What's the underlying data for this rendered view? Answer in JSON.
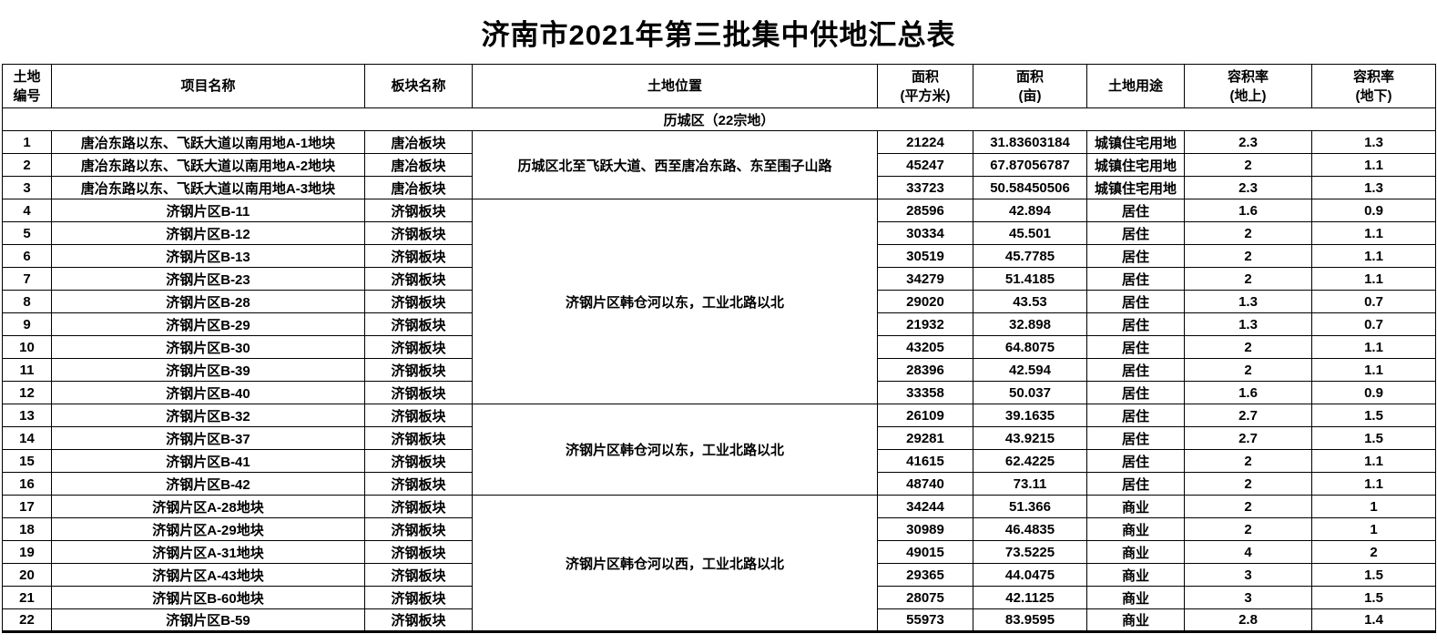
{
  "title": "济南市2021年第三批集中供地汇总表",
  "table": {
    "columns": [
      {
        "key": "land-id",
        "lines": [
          "土地",
          "编号"
        ]
      },
      {
        "key": "project-name",
        "lines": [
          "项目名称"
        ]
      },
      {
        "key": "block-name",
        "lines": [
          "板块名称"
        ]
      },
      {
        "key": "land-location",
        "lines": [
          "土地位置"
        ]
      },
      {
        "key": "area-sqm",
        "lines": [
          "面积",
          "(平方米)"
        ]
      },
      {
        "key": "area-mu",
        "lines": [
          "面积",
          "(亩)"
        ]
      },
      {
        "key": "land-use",
        "lines": [
          "土地用途"
        ]
      },
      {
        "key": "far-above",
        "lines": [
          "容积率",
          "(地上)"
        ]
      },
      {
        "key": "far-below",
        "lines": [
          "容积率",
          "(地下)"
        ]
      }
    ],
    "section": "历城区（22宗地）",
    "location_groups": [
      {
        "from": 1,
        "to": 3,
        "text": "历城区北至飞跃大道、西至唐冶东路、东至围子山路"
      },
      {
        "from": 4,
        "to": 12,
        "text": "济钢片区韩仓河以东，工业北路以北"
      },
      {
        "from": 13,
        "to": 16,
        "text": "济钢片区韩仓河以东，工业北路以北"
      },
      {
        "from": 17,
        "to": 22,
        "text": "济钢片区韩仓河以西，工业北路以北"
      }
    ],
    "rows": [
      {
        "no": "1",
        "name": "唐冶东路以东、飞跃大道以南用地A-1地块",
        "block": "唐冶板块",
        "area_sqm": "21224",
        "area_mu": "31.83603184",
        "use": "城镇住宅用地",
        "far_above": "2.3",
        "far_below": "1.3"
      },
      {
        "no": "2",
        "name": "唐冶东路以东、飞跃大道以南用地A-2地块",
        "block": "唐冶板块",
        "area_sqm": "45247",
        "area_mu": "67.87056787",
        "use": "城镇住宅用地",
        "far_above": "2",
        "far_below": "1.1"
      },
      {
        "no": "3",
        "name": "唐冶东路以东、飞跃大道以南用地A-3地块",
        "block": "唐冶板块",
        "area_sqm": "33723",
        "area_mu": "50.58450506",
        "use": "城镇住宅用地",
        "far_above": "2.3",
        "far_below": "1.3"
      },
      {
        "no": "4",
        "name": "济钢片区B-11",
        "block": "济钢板块",
        "area_sqm": "28596",
        "area_mu": "42.894",
        "use": "居住",
        "far_above": "1.6",
        "far_below": "0.9"
      },
      {
        "no": "5",
        "name": "济钢片区B-12",
        "block": "济钢板块",
        "area_sqm": "30334",
        "area_mu": "45.501",
        "use": "居住",
        "far_above": "2",
        "far_below": "1.1"
      },
      {
        "no": "6",
        "name": "济钢片区B-13",
        "block": "济钢板块",
        "area_sqm": "30519",
        "area_mu": "45.7785",
        "use": "居住",
        "far_above": "2",
        "far_below": "1.1"
      },
      {
        "no": "7",
        "name": "济钢片区B-23",
        "block": "济钢板块",
        "area_sqm": "34279",
        "area_mu": "51.4185",
        "use": "居住",
        "far_above": "2",
        "far_below": "1.1"
      },
      {
        "no": "8",
        "name": "济钢片区B-28",
        "block": "济钢板块",
        "area_sqm": "29020",
        "area_mu": "43.53",
        "use": "居住",
        "far_above": "1.3",
        "far_below": "0.7"
      },
      {
        "no": "9",
        "name": "济钢片区B-29",
        "block": "济钢板块",
        "area_sqm": "21932",
        "area_mu": "32.898",
        "use": "居住",
        "far_above": "1.3",
        "far_below": "0.7"
      },
      {
        "no": "10",
        "name": "济钢片区B-30",
        "block": "济钢板块",
        "area_sqm": "43205",
        "area_mu": "64.8075",
        "use": "居住",
        "far_above": "2",
        "far_below": "1.1"
      },
      {
        "no": "11",
        "name": "济钢片区B-39",
        "block": "济钢板块",
        "area_sqm": "28396",
        "area_mu": "42.594",
        "use": "居住",
        "far_above": "2",
        "far_below": "1.1"
      },
      {
        "no": "12",
        "name": "济钢片区B-40",
        "block": "济钢板块",
        "area_sqm": "33358",
        "area_mu": "50.037",
        "use": "居住",
        "far_above": "1.6",
        "far_below": "0.9"
      },
      {
        "no": "13",
        "name": "济钢片区B-32",
        "block": "济钢板块",
        "area_sqm": "26109",
        "area_mu": "39.1635",
        "use": "居住",
        "far_above": "2.7",
        "far_below": "1.5"
      },
      {
        "no": "14",
        "name": "济钢片区B-37",
        "block": "济钢板块",
        "area_sqm": "29281",
        "area_mu": "43.9215",
        "use": "居住",
        "far_above": "2.7",
        "far_below": "1.5"
      },
      {
        "no": "15",
        "name": "济钢片区B-41",
        "block": "济钢板块",
        "area_sqm": "41615",
        "area_mu": "62.4225",
        "use": "居住",
        "far_above": "2",
        "far_below": "1.1"
      },
      {
        "no": "16",
        "name": "济钢片区B-42",
        "block": "济钢板块",
        "area_sqm": "48740",
        "area_mu": "73.11",
        "use": "居住",
        "far_above": "2",
        "far_below": "1.1"
      },
      {
        "no": "17",
        "name": "济钢片区A-28地块",
        "block": "济钢板块",
        "area_sqm": "34244",
        "area_mu": "51.366",
        "use": "商业",
        "far_above": "2",
        "far_below": "1"
      },
      {
        "no": "18",
        "name": "济钢片区A-29地块",
        "block": "济钢板块",
        "area_sqm": "30989",
        "area_mu": "46.4835",
        "use": "商业",
        "far_above": "2",
        "far_below": "1"
      },
      {
        "no": "19",
        "name": "济钢片区A-31地块",
        "block": "济钢板块",
        "area_sqm": "49015",
        "area_mu": "73.5225",
        "use": "商业",
        "far_above": "4",
        "far_below": "2"
      },
      {
        "no": "20",
        "name": "济钢片区A-43地块",
        "block": "济钢板块",
        "area_sqm": "29365",
        "area_mu": "44.0475",
        "use": "商业",
        "far_above": "3",
        "far_below": "1.5"
      },
      {
        "no": "21",
        "name": "济钢片区B-60地块",
        "block": "济钢板块",
        "area_sqm": "28075",
        "area_mu": "42.1125",
        "use": "商业",
        "far_above": "3",
        "far_below": "1.5"
      },
      {
        "no": "22",
        "name": "济钢片区B-59",
        "block": "济钢板块",
        "area_sqm": "55973",
        "area_mu": "83.9595",
        "use": "商业",
        "far_above": "2.8",
        "far_below": "1.4"
      }
    ]
  }
}
